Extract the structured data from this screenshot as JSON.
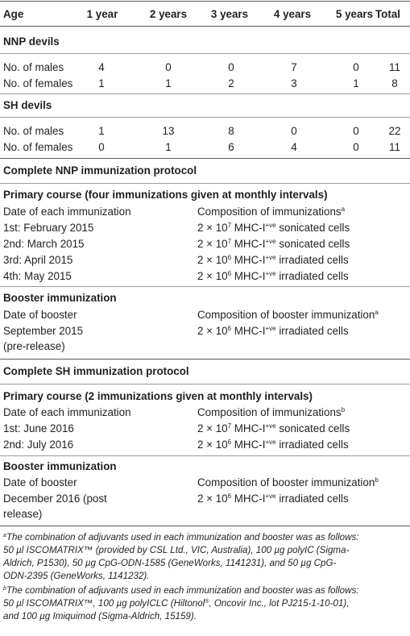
{
  "header": [
    "Age",
    "1 year",
    "2 years",
    "3 years",
    "4 years",
    "5 years",
    "Total"
  ],
  "groups": [
    {
      "title": "NNP devils",
      "rows": [
        {
          "label": "No. of males",
          "values": [
            "4",
            "0",
            "0",
            "7",
            "0",
            "11"
          ]
        },
        {
          "label": "No. of females",
          "values": [
            "1",
            "1",
            "2",
            "3",
            "1",
            "8"
          ]
        }
      ]
    },
    {
      "title": "SH devils",
      "rows": [
        {
          "label": "No. of males",
          "values": [
            "1",
            "13",
            "8",
            "0",
            "0",
            "22"
          ]
        },
        {
          "label": "No. of females",
          "values": [
            "0",
            "1",
            "6",
            "4",
            "0",
            "11"
          ]
        }
      ]
    }
  ],
  "nnp": {
    "title": "Complete NNP immunization protocol",
    "primary_title": "Primary course (four immunizations given at monthly intervals)",
    "date_header": "Date of each immunization",
    "comp_header": "Composition of immunizations",
    "comp_header_sup": "a",
    "rows": [
      {
        "date": "1st: February 2015",
        "base": "2 × 10",
        "exp": "7",
        "mhc": " MHC-I",
        "ve": "+ve",
        "cells": " sonicated cells"
      },
      {
        "date": "2nd: March 2015",
        "base": "2 × 10",
        "exp": "7",
        "mhc": " MHC-I",
        "ve": "+ve",
        "cells": " sonicated cells"
      },
      {
        "date": "3rd: April 2015",
        "base": "2 × 10",
        "exp": "6",
        "mhc": " MHC-I",
        "ve": "+ve",
        "cells": " irradiated cells"
      },
      {
        "date": "4th: May 2015",
        "base": "2 × 10",
        "exp": "6",
        "mhc": " MHC-I",
        "ve": "+ve",
        "cells": " irradiated cells"
      }
    ],
    "booster_title": "Booster immunization",
    "booster_date_header": "Date of booster",
    "booster_comp_header": "Composition of booster immunization",
    "booster_comp_sup": "a",
    "booster_date_line1": "September 2015",
    "booster_date_line2": "(pre-release)",
    "booster_comp": {
      "base": "2 × 10",
      "exp": "6",
      "mhc": " MHC-I",
      "ve": "+ve",
      "cells": " irradiated cells"
    }
  },
  "sh": {
    "title": "Complete SH immunization protocol",
    "primary_title": "Primary course (2 immunizations given at monthly intervals)",
    "date_header": "Date of each immunization",
    "comp_header": "Composition of immunizations",
    "comp_header_sup": "b",
    "rows": [
      {
        "date": "1st: June 2016",
        "base": "2 × 10",
        "exp": "7",
        "mhc": " MHC-I",
        "ve": "+ve",
        "cells": " sonicated cells"
      },
      {
        "date": "2nd: July 2016",
        "base": "2 × 10",
        "exp": "6",
        "mhc": " MHC-I",
        "ve": "+ve",
        "cells": " irradiated cells"
      }
    ],
    "booster_title": "Booster immunization",
    "booster_date_header": "Date of booster",
    "booster_comp_header": "Composition of booster immunization",
    "booster_comp_sup": "b",
    "booster_date_line1": "December 2016 (post",
    "booster_date_line2": "release)",
    "booster_comp": {
      "base": "2 × 10",
      "exp": "6",
      "mhc": " MHC-I",
      "ve": "+ve",
      "cells": " irradiated cells"
    }
  },
  "footnotes": {
    "a_mark": "a",
    "a_lines": [
      "The combination of adjuvants used in each immunization and booster was as follows:",
      "50 µl ISCOMATRIX™ (provided by CSL Ltd., VIC, Australia), 100 µg polyIC (Sigma-",
      "Aldrich, P1530), 50 µg CpG-ODN-1585 (GeneWorks, 1141231), and 50 µg CpG-",
      "ODN-2395 (GeneWorks, 1141232)."
    ],
    "b_mark": "b",
    "b_lines": [
      "The combination of adjuvants used in each immunization and booster was as follows:",
      "50 µl ISCOMATRIX™, 100 µg polyICLC (Hiltonol",
      "and 100 µg Imiquimod (Sigma-Aldrich, 15159)."
    ],
    "b_line2_reg": "®",
    "b_line2_rest": ", Oncovir Inc., lot PJ215-1-10-01),"
  }
}
